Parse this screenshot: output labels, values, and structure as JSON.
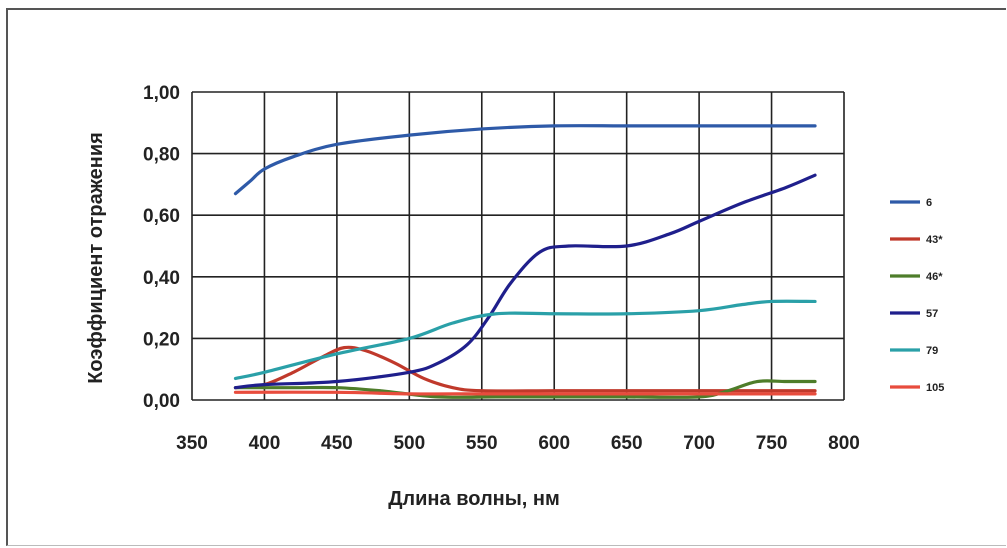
{
  "chart_data": {
    "type": "line",
    "title": "",
    "xlabel": "Длина волны, нм",
    "ylabel": "Коэффициент отражения",
    "xlim": [
      350,
      800
    ],
    "ylim": [
      0,
      1.0
    ],
    "x_ticks": [
      "350",
      "400",
      "450",
      "500",
      "550",
      "600",
      "650",
      "700",
      "750",
      "800"
    ],
    "y_ticks": [
      "0,00",
      "0,20",
      "0,40",
      "0,60",
      "0,80",
      "1,00"
    ],
    "grid": true,
    "legend_position": "right",
    "series": [
      {
        "name": "6",
        "color": "#2e5aa8",
        "x": [
          380,
          390,
          400,
          420,
          450,
          500,
          550,
          600,
          650,
          700,
          750,
          780
        ],
        "y": [
          0.67,
          0.71,
          0.75,
          0.79,
          0.83,
          0.86,
          0.88,
          0.89,
          0.89,
          0.89,
          0.89,
          0.89
        ]
      },
      {
        "name": "43*",
        "color": "#c0392b",
        "x": [
          380,
          400,
          420,
          440,
          455,
          470,
          490,
          510,
          530,
          550,
          600,
          650,
          700,
          750,
          780
        ],
        "y": [
          0.04,
          0.05,
          0.09,
          0.14,
          0.17,
          0.16,
          0.12,
          0.07,
          0.04,
          0.03,
          0.03,
          0.03,
          0.03,
          0.03,
          0.03
        ]
      },
      {
        "name": "46*",
        "color": "#4e7d2a",
        "x": [
          380,
          420,
          450,
          480,
          520,
          560,
          600,
          650,
          700,
          720,
          740,
          760,
          780
        ],
        "y": [
          0.04,
          0.04,
          0.04,
          0.03,
          0.01,
          0.01,
          0.01,
          0.01,
          0.01,
          0.03,
          0.06,
          0.06,
          0.06
        ]
      },
      {
        "name": "57",
        "color": "#1f1f8c",
        "x": [
          380,
          400,
          450,
          500,
          520,
          540,
          555,
          570,
          590,
          610,
          650,
          680,
          700,
          730,
          760,
          780
        ],
        "y": [
          0.04,
          0.05,
          0.06,
          0.09,
          0.12,
          0.18,
          0.27,
          0.38,
          0.48,
          0.5,
          0.5,
          0.54,
          0.58,
          0.64,
          0.69,
          0.73
        ]
      },
      {
        "name": "79",
        "color": "#2aa0a8",
        "x": [
          380,
          400,
          450,
          500,
          530,
          560,
          600,
          650,
          700,
          730,
          750,
          780
        ],
        "y": [
          0.07,
          0.09,
          0.15,
          0.2,
          0.25,
          0.28,
          0.28,
          0.28,
          0.29,
          0.31,
          0.32,
          0.32
        ]
      },
      {
        "name": "105",
        "color": "#e84c3d",
        "x": [
          380,
          450,
          500,
          550,
          600,
          650,
          700,
          750,
          780
        ],
        "y": [
          0.025,
          0.025,
          0.02,
          0.02,
          0.02,
          0.02,
          0.02,
          0.02,
          0.02
        ]
      }
    ]
  }
}
